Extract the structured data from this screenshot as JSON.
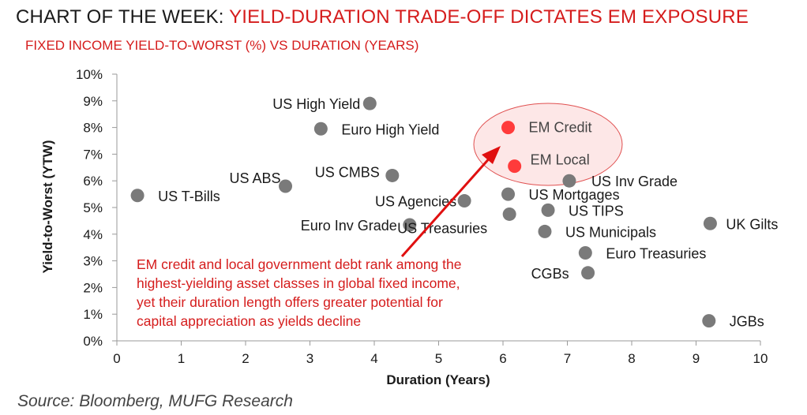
{
  "header": {
    "title_prefix": "CHART OF THE WEEK: ",
    "title_highlight": "YIELD-DURATION TRADE-OFF DICTATES EM EXPOSURE",
    "subtitle": "FIXED INCOME YIELD-TO-WORST (%) VS DURATION (YEARS)"
  },
  "source": "Source: Bloomberg, MUFG Research",
  "chart_data": {
    "type": "scatter",
    "xlabel": "Duration (Years)",
    "ylabel": "Yield-to-Worst (YTW)",
    "xlim": [
      0,
      10
    ],
    "ylim": [
      0,
      10
    ],
    "x_ticks": [
      0,
      1,
      2,
      3,
      4,
      5,
      6,
      7,
      8,
      9,
      10
    ],
    "y_ticks": [
      "0%",
      "1%",
      "2%",
      "3%",
      "4%",
      "5%",
      "6%",
      "7%",
      "8%",
      "9%",
      "10%"
    ],
    "grid": false,
    "points": [
      {
        "label": "US High Yield",
        "x": 3.93,
        "y": 8.9,
        "highlight": false
      },
      {
        "label": "Euro High Yield",
        "x": 3.17,
        "y": 7.95,
        "highlight": false
      },
      {
        "label": "EM Credit",
        "x": 6.08,
        "y": 8.0,
        "highlight": true
      },
      {
        "label": "EM Local",
        "x": 6.18,
        "y": 6.55,
        "highlight": true
      },
      {
        "label": "US ABS",
        "x": 2.62,
        "y": 5.8,
        "highlight": false
      },
      {
        "label": "US CMBS",
        "x": 4.28,
        "y": 6.2,
        "highlight": false
      },
      {
        "label": "US T-Bills",
        "x": 0.32,
        "y": 5.45,
        "highlight": false
      },
      {
        "label": "US Agencies",
        "x": 5.4,
        "y": 5.25,
        "highlight": false
      },
      {
        "label": "US Inv Grade",
        "x": 7.03,
        "y": 6.0,
        "highlight": false
      },
      {
        "label": "US Mortgages",
        "x": 6.08,
        "y": 5.5,
        "highlight": false
      },
      {
        "label": "US TIPS",
        "x": 6.7,
        "y": 4.9,
        "highlight": false
      },
      {
        "label": "US Treasuries",
        "x": 6.1,
        "y": 4.75,
        "highlight": false
      },
      {
        "label": "Euro Inv Grade",
        "x": 4.55,
        "y": 4.35,
        "highlight": false
      },
      {
        "label": "US Municipals",
        "x": 6.65,
        "y": 4.1,
        "highlight": false
      },
      {
        "label": "UK Gilts",
        "x": 9.22,
        "y": 4.4,
        "highlight": false
      },
      {
        "label": "Euro Treasuries",
        "x": 7.28,
        "y": 3.3,
        "highlight": false
      },
      {
        "label": "CGBs",
        "x": 7.32,
        "y": 2.55,
        "highlight": false
      },
      {
        "label": "JGBs",
        "x": 9.2,
        "y": 0.75,
        "highlight": false
      }
    ],
    "annotation_lines": [
      "EM credit and local government debt rank among the",
      "highest-yielding asset classes in global fixed income,",
      "yet their duration length offers greater potential for",
      "capital appreciation as yields decline"
    ]
  },
  "colors": {
    "point": "#7a7a7a",
    "highlight_point": "#ff3b3b",
    "ellipse_fill": "#fde7e7",
    "ellipse_stroke": "#e05050",
    "arrow": "#e01010",
    "annotation_text": "#d51c1c",
    "title_highlight": "#d51c1c"
  }
}
